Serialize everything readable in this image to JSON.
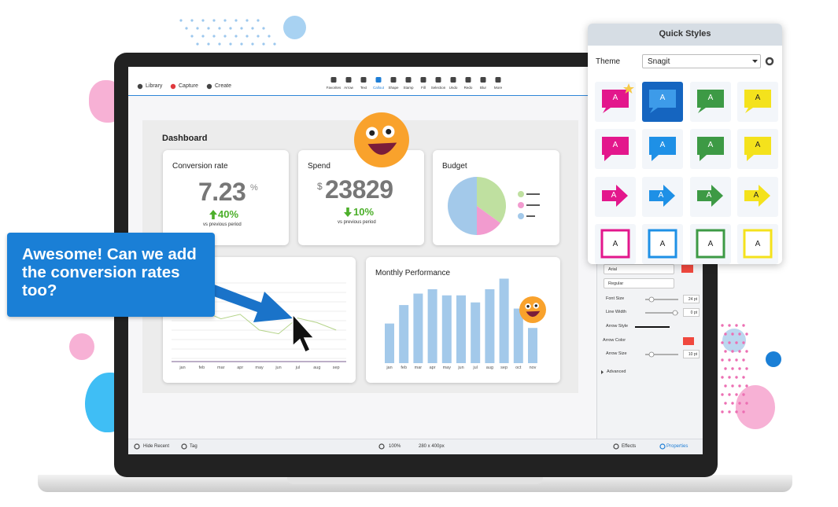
{
  "toolbar": {
    "left": [
      "Library",
      "Capture",
      "Create"
    ],
    "tools": [
      "Favorites",
      "Arrow",
      "Text",
      "Callout",
      "Shape",
      "Stamp",
      "Fill",
      "Selection",
      "Undo",
      "Redo",
      "Blur",
      "More"
    ]
  },
  "dashboard": {
    "title": "Dashboard",
    "conversion": {
      "title": "Conversion rate",
      "value": "7.23",
      "unit": "%",
      "change": "40%",
      "note": "vs previous period"
    },
    "spend": {
      "title": "Spend",
      "currency": "$",
      "value": "23829",
      "change": "10%",
      "note": "vs previous period"
    },
    "budget": {
      "title": "Budget",
      "values": [
        35,
        15,
        50
      ],
      "colors": [
        "#bfe0a0",
        "#f29bcf",
        "#a3c9ea"
      ]
    },
    "trend": {
      "categories": [
        "jan",
        "feb",
        "mar",
        "apr",
        "may",
        "jun",
        "jul",
        "aug",
        "sep"
      ],
      "values": [
        68,
        63,
        52,
        58,
        37,
        32,
        53,
        47,
        37
      ],
      "ylim": [
        0,
        100
      ],
      "color": "#b5d48a"
    },
    "monthly": {
      "title": "Monthly Performance",
      "categories": [
        "jan",
        "feb",
        "mar",
        "apr",
        "may",
        "jun",
        "jul",
        "aug",
        "sep",
        "oct",
        "nov"
      ],
      "values": [
        45,
        66,
        79,
        84,
        77,
        77,
        69,
        84,
        96,
        62,
        40
      ],
      "ylim": [
        0,
        100
      ],
      "color": "#a3c9ea"
    }
  },
  "callout": {
    "text": "Awesome! Can we add the conversion rates too?"
  },
  "quick_styles": {
    "title": "Quick Styles",
    "theme_label": "Theme",
    "theme": "Snagit",
    "tiles": [
      {
        "label": "A",
        "color": "#e3178c"
      },
      {
        "label": "A",
        "color": "#1e90e6"
      },
      {
        "label": "A",
        "color": "#3d9a45"
      },
      {
        "label": "A",
        "color": "#f4e21c"
      },
      {
        "label": "A",
        "color": "#e3178c"
      },
      {
        "label": "A",
        "color": "#1e90e6"
      },
      {
        "label": "A",
        "color": "#3d9a45"
      },
      {
        "label": "A",
        "color": "#f4e21c"
      },
      {
        "label": "A",
        "color": "#e3178c"
      },
      {
        "label": "A",
        "color": "#1e90e6"
      },
      {
        "label": "A",
        "color": "#3d9a45"
      },
      {
        "label": "A",
        "color": "#f4e21c"
      },
      {
        "label": "A",
        "color": "#e3178c"
      },
      {
        "label": "A",
        "color": "#1e90e6"
      },
      {
        "label": "A",
        "color": "#3d9a45"
      },
      {
        "label": "A",
        "color": "#f4e21c"
      }
    ]
  },
  "properties": {
    "font": "Arial",
    "style": "Regular",
    "rows": [
      {
        "label": "Font Size",
        "value": "24 pt"
      },
      {
        "label": "Line Width",
        "value": "0 pt"
      },
      {
        "label": "Arrow Style"
      },
      {
        "label": "Arrow Color"
      },
      {
        "label": "Arrow Size",
        "value": "10 pt"
      }
    ],
    "advanced": "Advanced"
  },
  "status": {
    "left": [
      "Hide Recent",
      "Tag"
    ],
    "zoom": "100%",
    "size": "280 x 400px",
    "right": [
      "Effects",
      "Properties"
    ]
  }
}
